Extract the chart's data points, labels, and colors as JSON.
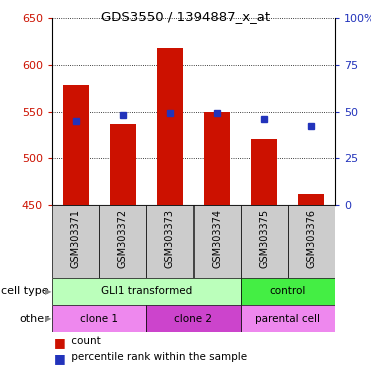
{
  "title": "GDS3550 / 1394887_x_at",
  "samples": [
    "GSM303371",
    "GSM303372",
    "GSM303373",
    "GSM303374",
    "GSM303375",
    "GSM303376"
  ],
  "counts": [
    578,
    537,
    618,
    549,
    521,
    462
  ],
  "percentiles": [
    45,
    48,
    49,
    49,
    46,
    42
  ],
  "baseline": 450,
  "ylim_left": [
    450,
    650
  ],
  "ylim_right": [
    0,
    100
  ],
  "yticks_left": [
    450,
    500,
    550,
    600,
    650
  ],
  "yticks_right": [
    0,
    25,
    50,
    75,
    100
  ],
  "bar_color": "#cc1100",
  "dot_color": "#2233bb",
  "cell_type_groups": [
    {
      "label": "GLI1 transformed",
      "start": 0,
      "end": 4,
      "color": "#bbffbb"
    },
    {
      "label": "control",
      "start": 4,
      "end": 6,
      "color": "#44ee44"
    }
  ],
  "other_groups": [
    {
      "label": "clone 1",
      "start": 0,
      "end": 2,
      "color": "#ee88ee"
    },
    {
      "label": "clone 2",
      "start": 2,
      "end": 4,
      "color": "#cc44cc"
    },
    {
      "label": "parental cell",
      "start": 4,
      "end": 6,
      "color": "#ee88ee"
    }
  ],
  "legend_count_label": "count",
  "legend_pct_label": "percentile rank within the sample",
  "row_labels": [
    "cell type",
    "other"
  ],
  "tick_color_left": "#cc1100",
  "tick_color_right": "#2233bb",
  "bg_color": "#ffffff",
  "sample_bg": "#cccccc"
}
